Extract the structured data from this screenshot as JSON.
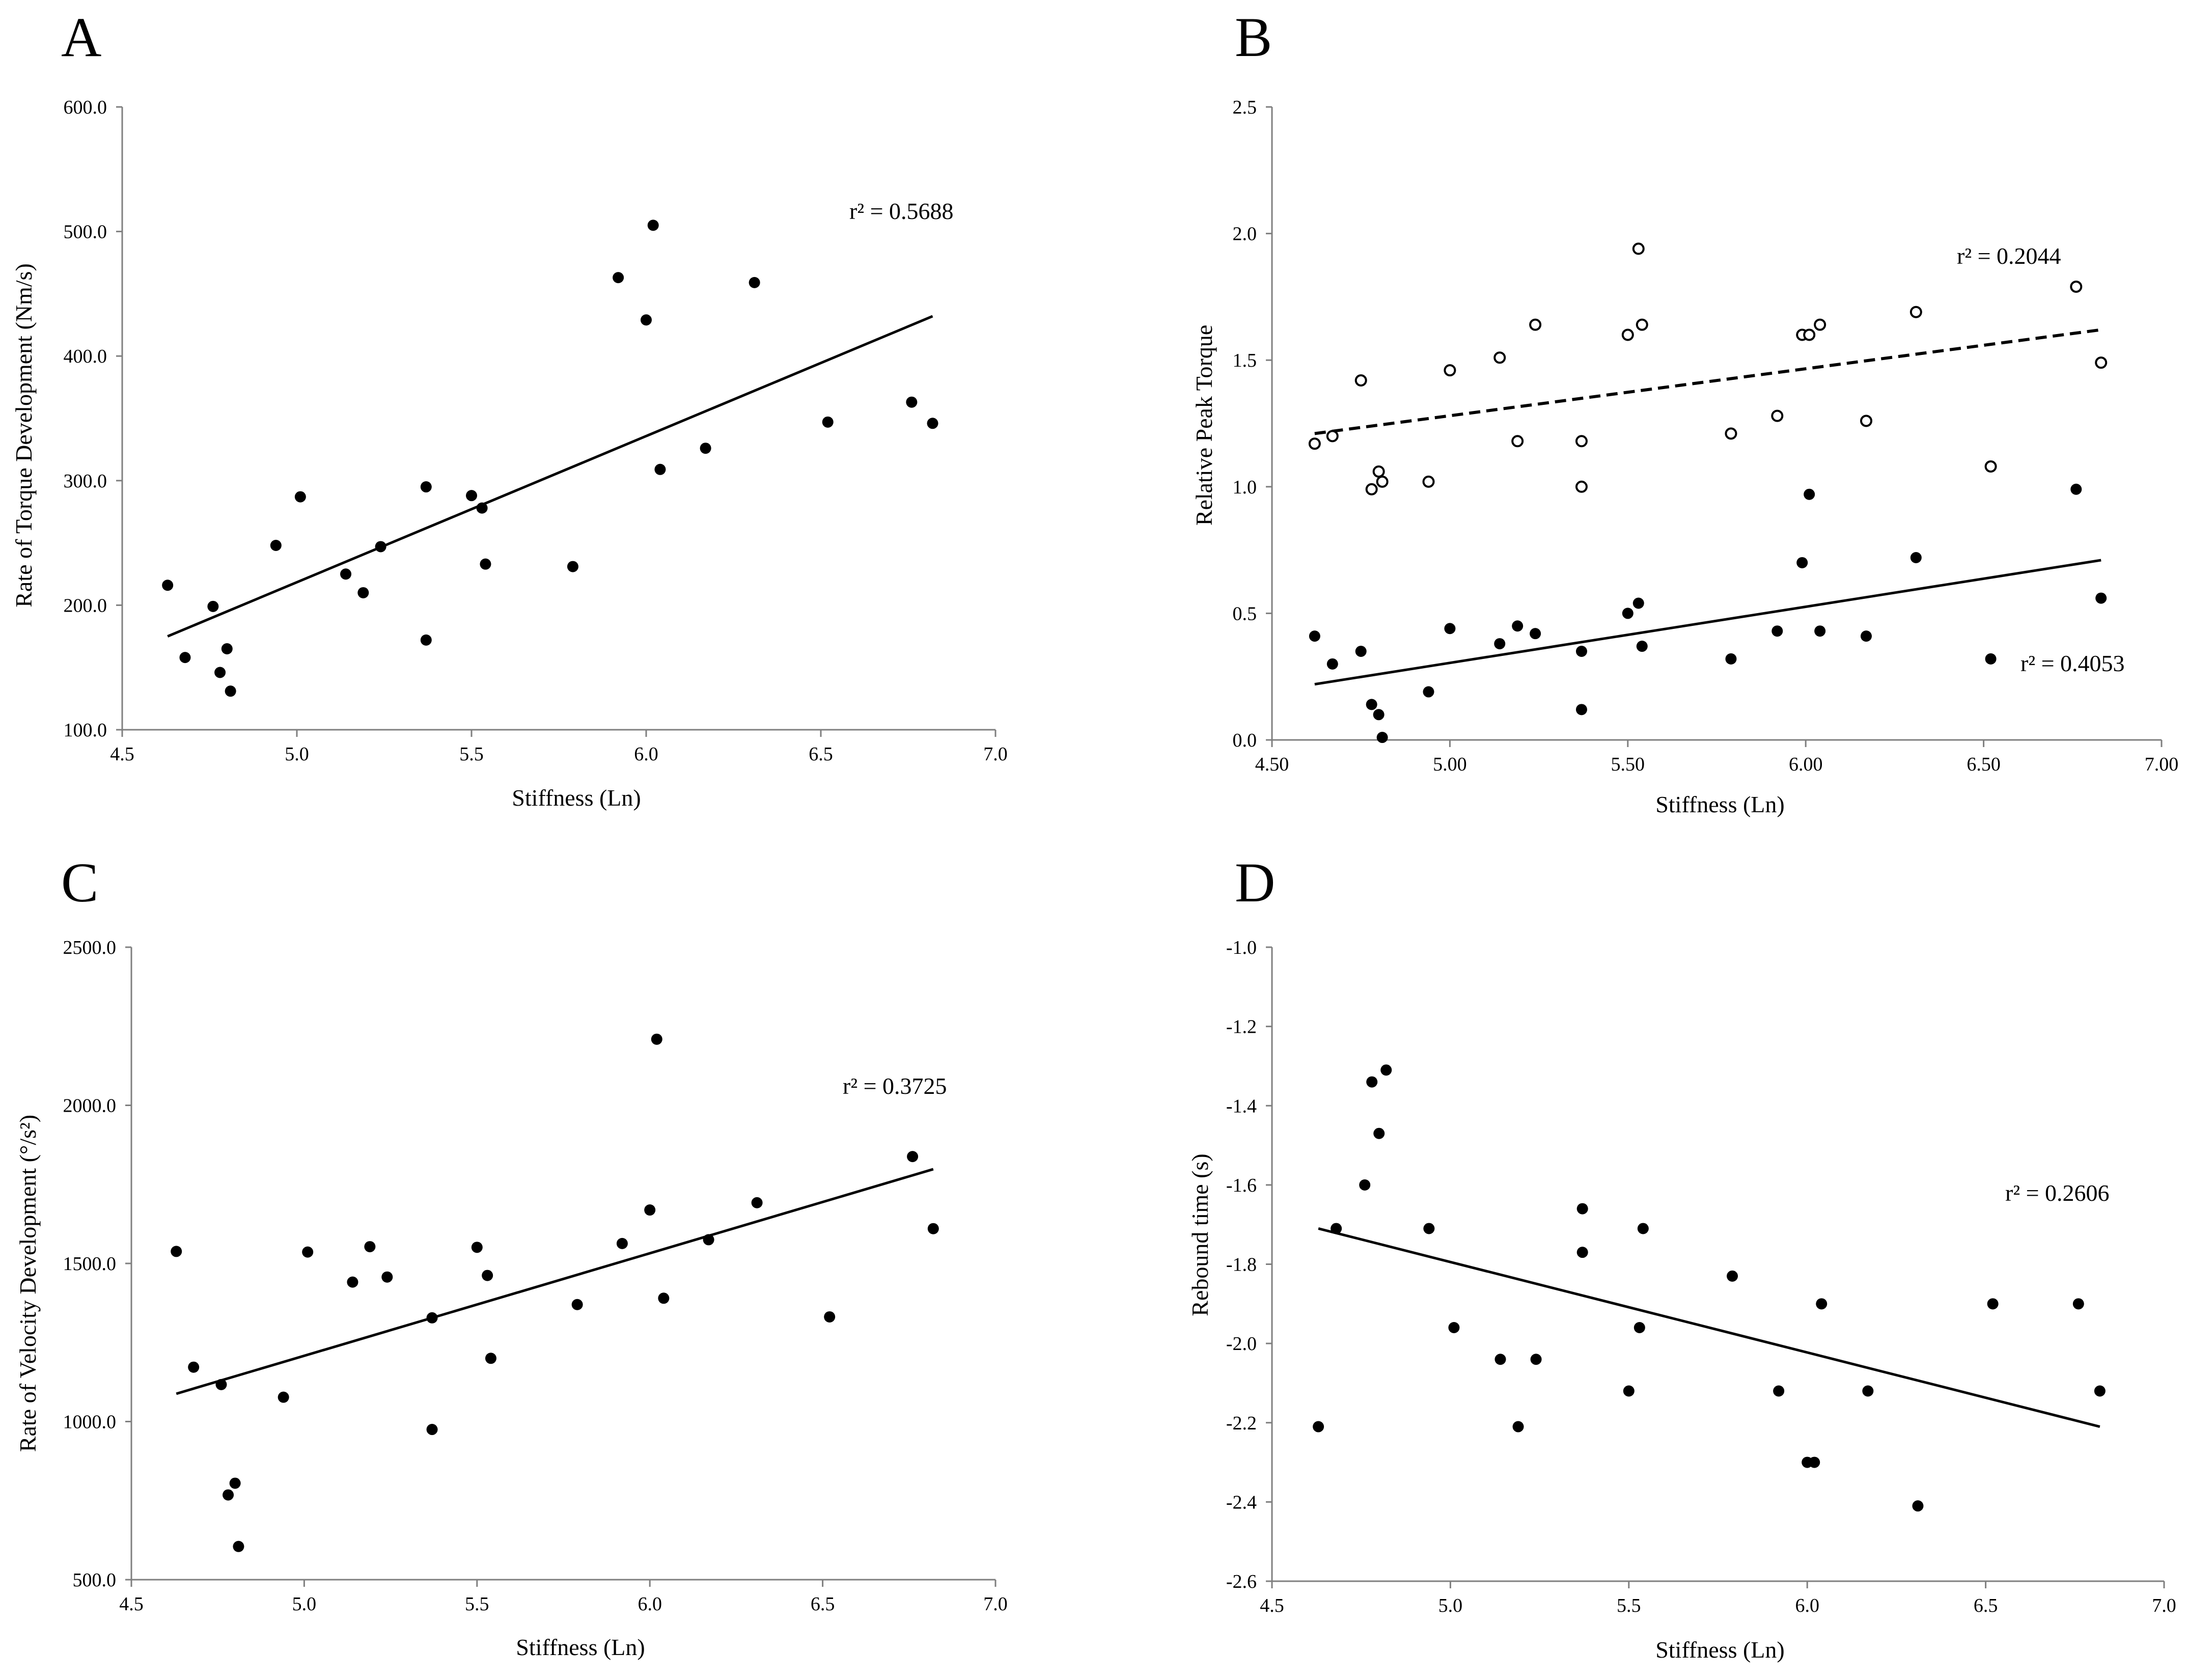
{
  "chart_data": [
    {
      "type": "scatter",
      "panel_label": "A",
      "title": "",
      "xlabel": "Stiffness (Ln)",
      "ylabel": "Rate of Torque Development (Nm/s)",
      "xlim": [
        4.5,
        7.0
      ],
      "ylim": [
        100.0,
        600.0
      ],
      "x_ticks": [
        "4.5",
        "5.0",
        "5.5",
        "6.0",
        "6.5",
        "7.0"
      ],
      "y_ticks": [
        "100.0",
        "200.0",
        "300.0",
        "400.0",
        "500.0",
        "600.0"
      ],
      "series": [
        {
          "name": "Rate of Torque Development",
          "marker": "filled",
          "points": [
            [
              4.63,
              216
            ],
            [
              4.68,
              158
            ],
            [
              4.76,
              199
            ],
            [
              4.78,
              146
            ],
            [
              4.8,
              165
            ],
            [
              4.81,
              131
            ],
            [
              4.94,
              248
            ],
            [
              5.01,
              287
            ],
            [
              5.14,
              225
            ],
            [
              5.19,
              210
            ],
            [
              5.24,
              247
            ],
            [
              5.37,
              295
            ],
            [
              5.37,
              172
            ],
            [
              5.5,
              288
            ],
            [
              5.53,
              278
            ],
            [
              5.54,
              233
            ],
            [
              5.79,
              231
            ],
            [
              5.92,
              463
            ],
            [
              6.0,
              429
            ],
            [
              6.02,
              505
            ],
            [
              6.04,
              309
            ],
            [
              6.17,
              326
            ],
            [
              6.31,
              459
            ],
            [
              6.52,
              347
            ],
            [
              6.76,
              363
            ],
            [
              6.82,
              346
            ]
          ],
          "trendline": {
            "style": "solid",
            "from": [
              4.63,
              175
            ],
            "to": [
              6.82,
              432
            ]
          },
          "r2_label": "r² = 0.5688"
        }
      ]
    },
    {
      "type": "scatter",
      "panel_label": "B",
      "title": "",
      "xlabel": "Stiffness (Ln)",
      "ylabel": "Relative Peak Torque",
      "xlim": [
        4.5,
        7.0
      ],
      "ylim": [
        0.0,
        2.5
      ],
      "x_ticks": [
        "4.50",
        "5.00",
        "5.50",
        "6.00",
        "6.50",
        "7.00"
      ],
      "y_ticks": [
        "0.0",
        "0.5",
        "1.0",
        "1.5",
        "2.0",
        "2.5"
      ],
      "series": [
        {
          "name": "Open circles",
          "marker": "open",
          "points": [
            [
              4.62,
              1.17
            ],
            [
              4.67,
              1.2
            ],
            [
              4.75,
              1.42
            ],
            [
              4.78,
              0.99
            ],
            [
              4.8,
              1.06
            ],
            [
              4.81,
              1.02
            ],
            [
              4.94,
              1.02
            ],
            [
              5.0,
              1.46
            ],
            [
              5.14,
              1.51
            ],
            [
              5.19,
              1.18
            ],
            [
              5.24,
              1.64
            ],
            [
              5.37,
              1.18
            ],
            [
              5.37,
              1.0
            ],
            [
              5.5,
              1.6
            ],
            [
              5.53,
              1.94
            ],
            [
              5.54,
              1.64
            ],
            [
              5.79,
              1.21
            ],
            [
              5.92,
              1.28
            ],
            [
              5.99,
              1.6
            ],
            [
              6.01,
              1.6
            ],
            [
              6.04,
              1.64
            ],
            [
              6.17,
              1.26
            ],
            [
              6.31,
              1.69
            ],
            [
              6.52,
              1.08
            ],
            [
              6.76,
              1.79
            ],
            [
              6.83,
              1.49
            ]
          ],
          "trendline": {
            "style": "dashed",
            "from": [
              4.62,
              1.21
            ],
            "to": [
              6.83,
              1.62
            ]
          },
          "r2_label": "r² = 0.2044"
        },
        {
          "name": "Filled circles",
          "marker": "filled",
          "points": [
            [
              4.62,
              0.41
            ],
            [
              4.67,
              0.3
            ],
            [
              4.75,
              0.35
            ],
            [
              4.78,
              0.14
            ],
            [
              4.8,
              0.1
            ],
            [
              4.81,
              0.01
            ],
            [
              4.94,
              0.19
            ],
            [
              5.0,
              0.44
            ],
            [
              5.14,
              0.38
            ],
            [
              5.19,
              0.45
            ],
            [
              5.24,
              0.42
            ],
            [
              5.37,
              0.35
            ],
            [
              5.37,
              0.12
            ],
            [
              5.5,
              0.5
            ],
            [
              5.53,
              0.54
            ],
            [
              5.54,
              0.37
            ],
            [
              5.79,
              0.32
            ],
            [
              5.92,
              0.43
            ],
            [
              5.99,
              0.7
            ],
            [
              6.01,
              0.97
            ],
            [
              6.04,
              0.43
            ],
            [
              6.17,
              0.41
            ],
            [
              6.31,
              0.72
            ],
            [
              6.52,
              0.32
            ],
            [
              6.76,
              0.99
            ],
            [
              6.83,
              0.56
            ]
          ],
          "trendline": {
            "style": "solid",
            "from": [
              4.62,
              0.22
            ],
            "to": [
              6.83,
              0.71
            ]
          },
          "r2_label": "r² = 0.4053"
        }
      ]
    },
    {
      "type": "scatter",
      "panel_label": "C",
      "title": "",
      "xlabel": "Stiffness (Ln)",
      "ylabel": "Rate of Velocity Development (°/s²)",
      "xlim": [
        4.5,
        7.0
      ],
      "ylim": [
        500.0,
        2500.0
      ],
      "x_ticks": [
        "4.5",
        "5.0",
        "5.5",
        "6.0",
        "6.5",
        "7.0"
      ],
      "y_ticks": [
        "500.0",
        "1000.0",
        "1500.0",
        "2000.0",
        "2500.0"
      ],
      "series": [
        {
          "name": "Rate of Velocity Development",
          "marker": "filled",
          "points": [
            [
              4.63,
              1538
            ],
            [
              4.68,
              1172
            ],
            [
              4.76,
              1117
            ],
            [
              4.78,
              768
            ],
            [
              4.8,
              805
            ],
            [
              4.81,
              605
            ],
            [
              4.94,
              1077
            ],
            [
              5.01,
              1536
            ],
            [
              5.14,
              1441
            ],
            [
              5.19,
              1553
            ],
            [
              5.24,
              1457
            ],
            [
              5.37,
              1328
            ],
            [
              5.37,
              975
            ],
            [
              5.5,
              1551
            ],
            [
              5.53,
              1462
            ],
            [
              5.54,
              1200
            ],
            [
              5.79,
              1370
            ],
            [
              5.92,
              1563
            ],
            [
              6.0,
              1669
            ],
            [
              6.02,
              2209
            ],
            [
              6.04,
              1390
            ],
            [
              6.17,
              1575
            ],
            [
              6.31,
              1692
            ],
            [
              6.52,
              1331
            ],
            [
              6.76,
              1838
            ],
            [
              6.82,
              1610
            ]
          ],
          "trendline": {
            "style": "solid",
            "from": [
              4.63,
              1088
            ],
            "to": [
              6.82,
              1798
            ]
          },
          "r2_label": "r² = 0.3725"
        }
      ]
    },
    {
      "type": "scatter",
      "panel_label": "D",
      "title": "",
      "xlabel": "Stiffness (Ln)",
      "ylabel": "Rebound time (s)",
      "xlim": [
        4.5,
        7.0
      ],
      "ylim": [
        -2.6,
        -1.0
      ],
      "x_ticks": [
        "4.5",
        "5.0",
        "5.5",
        "6.0",
        "6.5",
        "7.0"
      ],
      "y_ticks": [
        "-2.6",
        "-2.4",
        "-2.2",
        "-2.0",
        "-1.8",
        "-1.6",
        "-1.4",
        "-1.2",
        "-1.0"
      ],
      "series": [
        {
          "name": "Rebound time",
          "marker": "filled",
          "points": [
            [
              4.63,
              -2.21
            ],
            [
              4.68,
              -1.71
            ],
            [
              4.76,
              -1.6
            ],
            [
              4.78,
              -1.34
            ],
            [
              4.8,
              -1.47
            ],
            [
              4.82,
              -1.31
            ],
            [
              4.94,
              -1.71
            ],
            [
              5.01,
              -1.96
            ],
            [
              5.14,
              -2.04
            ],
            [
              5.19,
              -2.21
            ],
            [
              5.24,
              -2.04
            ],
            [
              5.37,
              -1.66
            ],
            [
              5.37,
              -1.77
            ],
            [
              5.5,
              -2.12
            ],
            [
              5.53,
              -1.96
            ],
            [
              5.54,
              -1.71
            ],
            [
              5.79,
              -1.83
            ],
            [
              5.92,
              -2.12
            ],
            [
              6.0,
              -2.3
            ],
            [
              6.02,
              -2.3
            ],
            [
              6.04,
              -1.9
            ],
            [
              6.17,
              -2.12
            ],
            [
              6.31,
              -2.41
            ],
            [
              6.52,
              -1.9
            ],
            [
              6.76,
              -1.9
            ],
            [
              6.82,
              -2.12
            ]
          ],
          "trendline": {
            "style": "solid",
            "from": [
              4.63,
              -1.71
            ],
            "to": [
              6.82,
              -2.21
            ]
          },
          "r2_label": "r² = 0.2606"
        }
      ]
    }
  ]
}
